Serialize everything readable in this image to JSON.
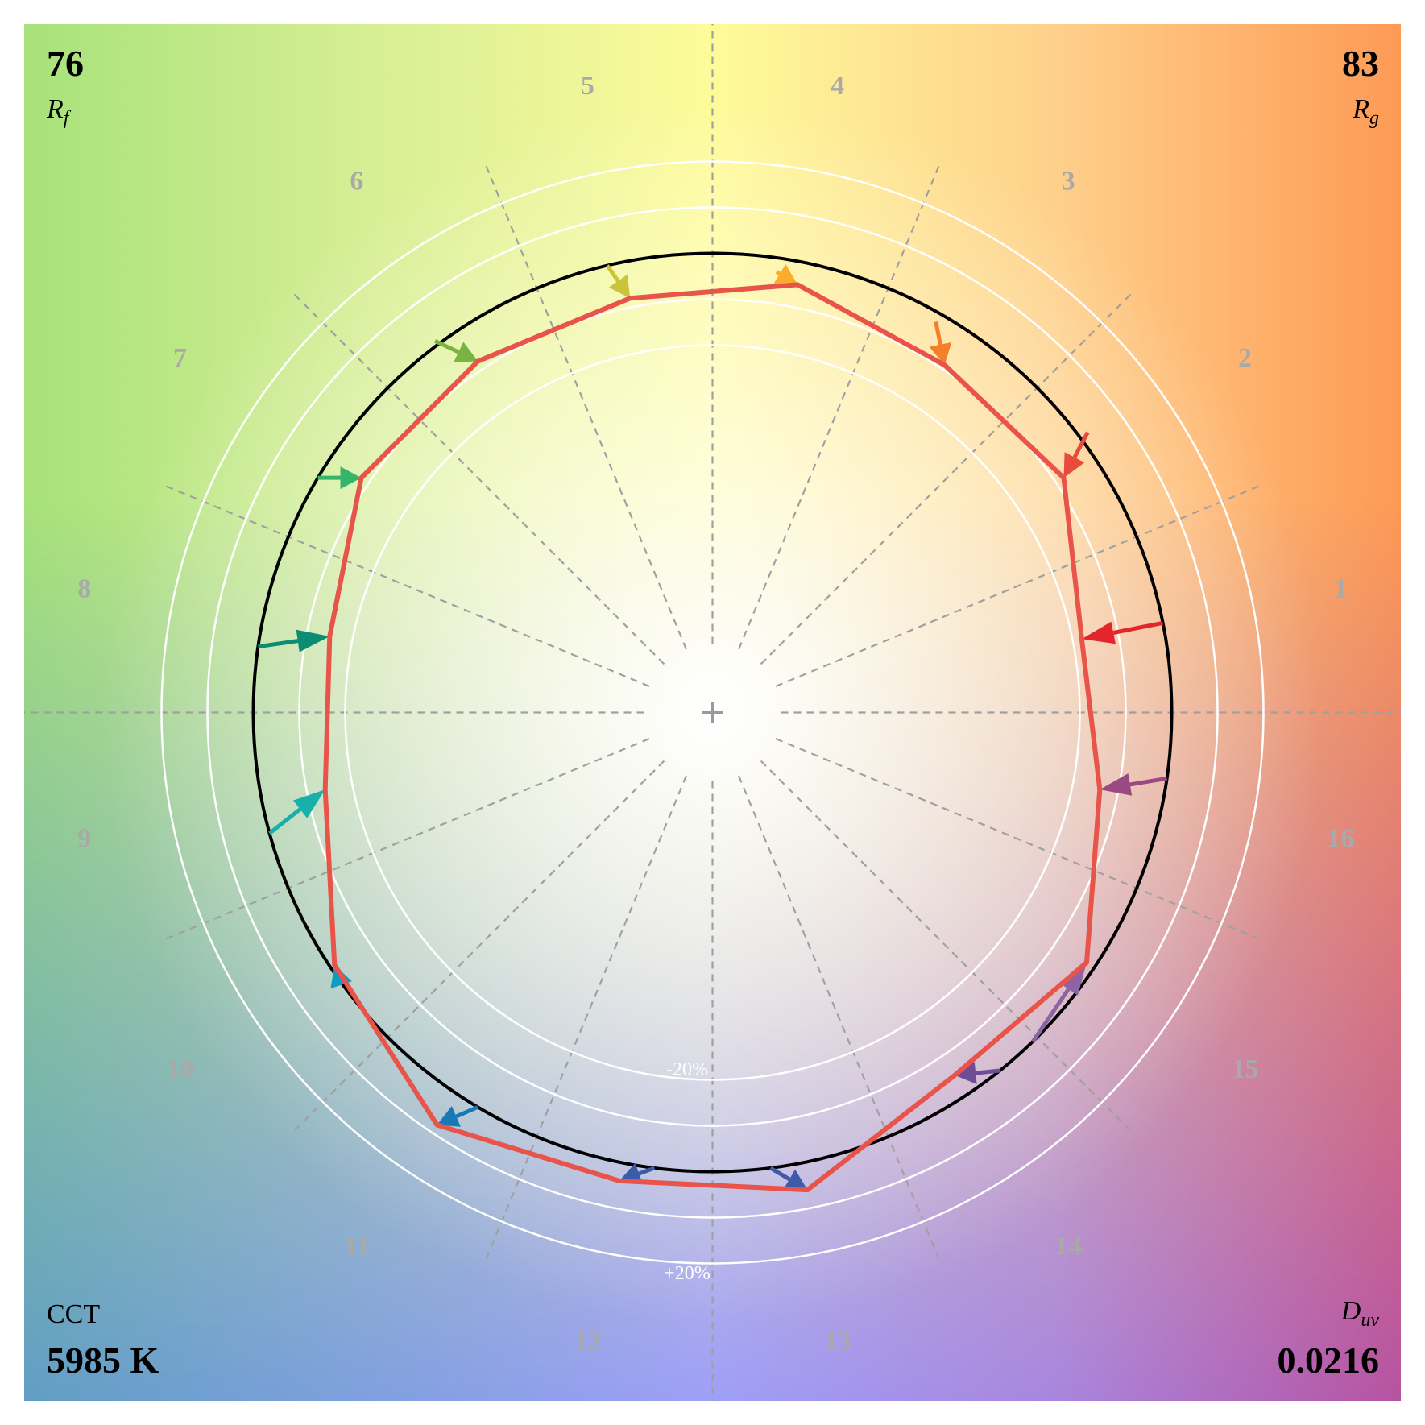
{
  "metrics": {
    "rf_value": "76",
    "rf_label": "R",
    "rf_sub": "f",
    "rg_value": "83",
    "rg_label": "R",
    "rg_sub": "g",
    "cct_label": "CCT",
    "cct_value": "5985 K",
    "duv_label": "D",
    "duv_sub": "uv",
    "duv_value": "0.0216"
  },
  "chart_data": {
    "type": "polar-vector",
    "ring_labels": {
      "inner": "-20%",
      "outer": "+20%"
    },
    "bins": [
      {
        "label": "1",
        "color": "#e3262c",
        "ref_radius": 1.0,
        "test_radius": 0.82,
        "ref_offset_deg": 0,
        "test_offset_deg": 0
      },
      {
        "label": "2",
        "color": "#e84a3b",
        "ref_radius": 1.02,
        "test_radius": 0.92,
        "ref_offset_deg": 3,
        "test_offset_deg": 0
      },
      {
        "label": "3",
        "color": "#f37e2b",
        "ref_radius": 0.98,
        "test_radius": 0.91,
        "ref_offset_deg": 4,
        "test_offset_deg": 0
      },
      {
        "label": "4",
        "color": "#f9ad2b",
        "ref_radius": 0.97,
        "test_radius": 0.95,
        "ref_offset_deg": 3,
        "test_offset_deg": 0
      },
      {
        "label": "5",
        "color": "#c9c43a",
        "ref_radius": 1.0,
        "test_radius": 0.92,
        "ref_offset_deg": 2,
        "test_offset_deg": 0
      },
      {
        "label": "6",
        "color": "#79b443",
        "ref_radius": 1.01,
        "test_radius": 0.92,
        "ref_offset_deg": 3,
        "test_offset_deg": 0
      },
      {
        "label": "7",
        "color": "#35b46a",
        "ref_radius": 1.0,
        "test_radius": 0.92,
        "ref_offset_deg": 3,
        "test_offset_deg": 0
      },
      {
        "label": "8",
        "color": "#0d8c74",
        "ref_radius": 1.0,
        "test_radius": 0.85,
        "ref_offset_deg": 3,
        "test_offset_deg": 0
      },
      {
        "label": "9",
        "color": "#17b1aa",
        "ref_radius": 1.0,
        "test_radius": 0.86,
        "ref_offset_deg": 4,
        "test_offset_deg": 0
      },
      {
        "label": "10",
        "color": "#0e9cc2",
        "ref_radius": 1.0,
        "test_radius": 0.99,
        "ref_offset_deg": 2,
        "test_offset_deg": 0
      },
      {
        "label": "11",
        "color": "#1779b6",
        "ref_radius": 1.0,
        "test_radius": 1.08,
        "ref_offset_deg": 3,
        "test_offset_deg": 0
      },
      {
        "label": "12",
        "color": "#3a5ca6",
        "ref_radius": 1.0,
        "test_radius": 1.04,
        "ref_offset_deg": 4,
        "test_offset_deg": 0
      },
      {
        "label": "13",
        "color": "#3f5aa8",
        "ref_radius": 1.0,
        "test_radius": 1.06,
        "ref_offset_deg": -4,
        "test_offset_deg": 0
      },
      {
        "label": "14",
        "color": "#6c4d96",
        "ref_radius": 1.0,
        "test_radius": 0.95,
        "ref_offset_deg": 5,
        "test_offset_deg": 0
      },
      {
        "label": "15",
        "color": "#8c64a6",
        "ref_radius": 1.0,
        "test_radius": 0.98,
        "ref_offset_deg": -12,
        "test_offset_deg": 0
      },
      {
        "label": "16",
        "color": "#9b4983",
        "ref_radius": 1.0,
        "test_radius": 0.86,
        "ref_offset_deg": 3,
        "test_offset_deg": 0
      }
    ],
    "colors": {
      "reference_circle": "#000000",
      "test_polygon": "#e8534a",
      "rings": "#ffffff",
      "dividers": "#a0a0a0",
      "bin_labels": "#a9a9a9"
    }
  }
}
